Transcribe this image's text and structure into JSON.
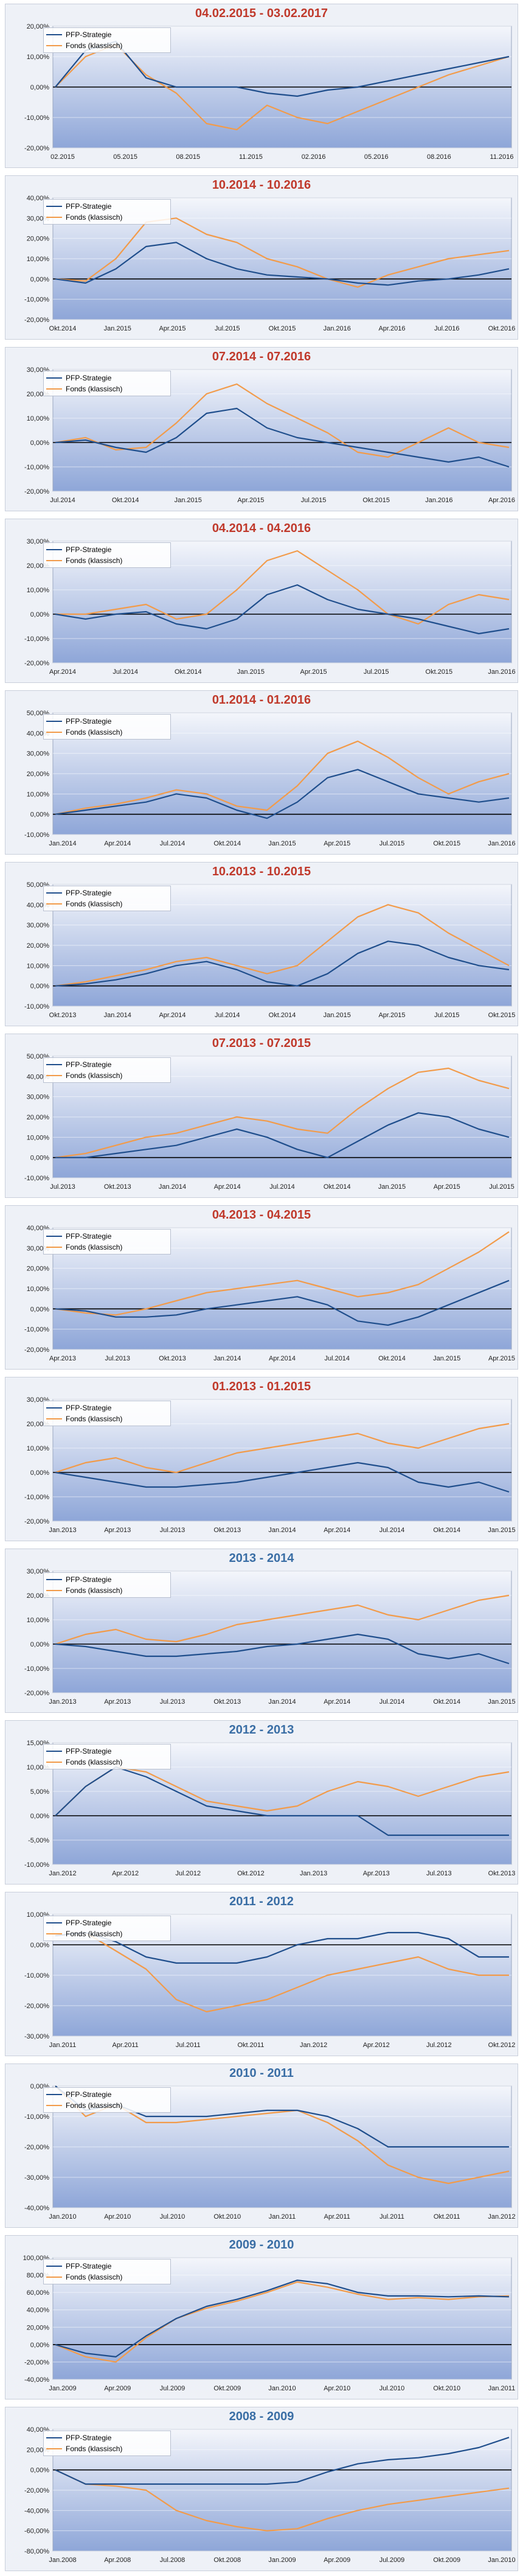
{
  "colors": {
    "strategy": "#1f4e8c",
    "fund": "#f29b4a",
    "title_red": "#c0392b",
    "title_blue": "#3a6ea5",
    "plot_top": "#f4f6fb",
    "plot_bottom": "#8ea6d8"
  },
  "chart_data": [
    {
      "type": "line",
      "title": "04.02.2015 - 03.02.2017",
      "title_color": "red",
      "yticks": [
        "20,00%",
        "10,00%",
        "0,00%",
        "-10,00%",
        "-20,00%"
      ],
      "ylim": [
        -20,
        20
      ],
      "xticks": [
        "02.2015",
        "05.2015",
        "08.2015",
        "11.2015",
        "02.2016",
        "05.2016",
        "08.2016",
        "11.2016"
      ],
      "series": [
        {
          "name": "PFP-Strategie",
          "values": [
            0,
            12,
            15,
            3,
            0,
            0,
            0,
            -2,
            -3,
            -1,
            0,
            2,
            4,
            6,
            8,
            10
          ]
        },
        {
          "name": "Fonds (klassisch)",
          "values": [
            0,
            10,
            14,
            4,
            -2,
            -12,
            -14,
            -6,
            -10,
            -12,
            -8,
            -4,
            0,
            4,
            7,
            10
          ]
        }
      ]
    },
    {
      "type": "line",
      "title": "10.2014 - 10.2016",
      "title_color": "red",
      "yticks": [
        "40,00%",
        "30,00%",
        "20,00%",
        "10,00%",
        "0,00%",
        "-10,00%",
        "-20,00%"
      ],
      "ylim": [
        -20,
        40
      ],
      "xticks": [
        "Okt.2014",
        "Jan.2015",
        "Apr.2015",
        "Jul.2015",
        "Okt.2015",
        "Jan.2016",
        "Apr.2016",
        "Jul.2016",
        "Okt.2016"
      ],
      "series": [
        {
          "name": "PFP-Strategie",
          "values": [
            0,
            -2,
            5,
            16,
            18,
            10,
            5,
            2,
            1,
            0,
            -2,
            -3,
            -1,
            0,
            2,
            5
          ]
        },
        {
          "name": "Fonds (klassisch)",
          "values": [
            0,
            -1,
            10,
            28,
            30,
            22,
            18,
            10,
            6,
            0,
            -4,
            2,
            6,
            10,
            12,
            14
          ]
        }
      ]
    },
    {
      "type": "line",
      "title": "07.2014 - 07.2016",
      "title_color": "red",
      "yticks": [
        "30,00%",
        "20,00%",
        "10,00%",
        "0,00%",
        "-10,00%",
        "-20,00%"
      ],
      "ylim": [
        -20,
        30
      ],
      "xticks": [
        "Jul.2014",
        "Okt.2014",
        "Jan.2015",
        "Apr.2015",
        "Jul.2015",
        "Okt.2015",
        "Jan.2016",
        "Apr.2016"
      ],
      "series": [
        {
          "name": "PFP-Strategie",
          "values": [
            0,
            1,
            -2,
            -4,
            2,
            12,
            14,
            6,
            2,
            0,
            -2,
            -4,
            -6,
            -8,
            -6,
            -10
          ]
        },
        {
          "name": "Fonds (klassisch)",
          "values": [
            0,
            2,
            -3,
            -2,
            8,
            20,
            24,
            16,
            10,
            4,
            -4,
            -6,
            0,
            6,
            0,
            -2
          ]
        }
      ]
    },
    {
      "type": "line",
      "title": "04.2014 - 04.2016",
      "title_color": "red",
      "yticks": [
        "30,00%",
        "20,00%",
        "10,00%",
        "0,00%",
        "-10,00%",
        "-20,00%"
      ],
      "ylim": [
        -20,
        30
      ],
      "xticks": [
        "Apr.2014",
        "Jul.2014",
        "Okt.2014",
        "Jan.2015",
        "Apr.2015",
        "Jul.2015",
        "Okt.2015",
        "Jan.2016"
      ],
      "series": [
        {
          "name": "PFP-Strategie",
          "values": [
            0,
            -2,
            0,
            1,
            -4,
            -6,
            -2,
            8,
            12,
            6,
            2,
            0,
            -2,
            -5,
            -8,
            -6
          ]
        },
        {
          "name": "Fonds (klassisch)",
          "values": [
            0,
            0,
            2,
            4,
            -2,
            0,
            10,
            22,
            26,
            18,
            10,
            0,
            -4,
            4,
            8,
            6
          ]
        }
      ]
    },
    {
      "type": "line",
      "title": "01.2014 - 01.2016",
      "title_color": "red",
      "yticks": [
        "50,00%",
        "40,00%",
        "30,00%",
        "20,00%",
        "10,00%",
        "0,00%",
        "-10,00%"
      ],
      "ylim": [
        -10,
        50
      ],
      "xticks": [
        "Jan.2014",
        "Apr.2014",
        "Jul.2014",
        "Okt.2014",
        "Jan.2015",
        "Apr.2015",
        "Jul.2015",
        "Okt.2015",
        "Jan.2016"
      ],
      "series": [
        {
          "name": "PFP-Strategie",
          "values": [
            0,
            2,
            4,
            6,
            10,
            8,
            2,
            -2,
            6,
            18,
            22,
            16,
            10,
            8,
            6,
            8
          ]
        },
        {
          "name": "Fonds (klassisch)",
          "values": [
            0,
            3,
            5,
            8,
            12,
            10,
            4,
            2,
            14,
            30,
            36,
            28,
            18,
            10,
            16,
            20
          ]
        }
      ]
    },
    {
      "type": "line",
      "title": "10.2013 - 10.2015",
      "title_color": "red",
      "yticks": [
        "50,00%",
        "40,00%",
        "30,00%",
        "20,00%",
        "10,00%",
        "0,00%",
        "-10,00%"
      ],
      "ylim": [
        -10,
        50
      ],
      "xticks": [
        "Okt.2013",
        "Jan.2014",
        "Apr.2014",
        "Jul.2014",
        "Okt.2014",
        "Jan.2015",
        "Apr.2015",
        "Jul.2015",
        "Okt.2015"
      ],
      "series": [
        {
          "name": "PFP-Strategie",
          "values": [
            0,
            1,
            3,
            6,
            10,
            12,
            8,
            2,
            0,
            6,
            16,
            22,
            20,
            14,
            10,
            8
          ]
        },
        {
          "name": "Fonds (klassisch)",
          "values": [
            0,
            2,
            5,
            8,
            12,
            14,
            10,
            6,
            10,
            22,
            34,
            40,
            36,
            26,
            18,
            10
          ]
        }
      ]
    },
    {
      "type": "line",
      "title": "07.2013 - 07.2015",
      "title_color": "red",
      "yticks": [
        "50,00%",
        "40,00%",
        "30,00%",
        "20,00%",
        "10,00%",
        "0,00%",
        "-10,00%"
      ],
      "ylim": [
        -10,
        50
      ],
      "xticks": [
        "Jul.2013",
        "Okt.2013",
        "Jan.2014",
        "Apr.2014",
        "Jul.2014",
        "Okt.2014",
        "Jan.2015",
        "Apr.2015",
        "Jul.2015"
      ],
      "series": [
        {
          "name": "PFP-Strategie",
          "values": [
            0,
            0,
            2,
            4,
            6,
            10,
            14,
            10,
            4,
            0,
            8,
            16,
            22,
            20,
            14,
            10
          ]
        },
        {
          "name": "Fonds (klassisch)",
          "values": [
            0,
            2,
            6,
            10,
            12,
            16,
            20,
            18,
            14,
            12,
            24,
            34,
            42,
            44,
            38,
            34
          ]
        }
      ]
    },
    {
      "type": "line",
      "title": "04.2013 - 04.2015",
      "title_color": "red",
      "yticks": [
        "40,00%",
        "30,00%",
        "20,00%",
        "10,00%",
        "0,00%",
        "-10,00%",
        "-20,00%"
      ],
      "ylim": [
        -20,
        40
      ],
      "xticks": [
        "Apr.2013",
        "Jul.2013",
        "Okt.2013",
        "Jan.2014",
        "Apr.2014",
        "Jul.2014",
        "Okt.2014",
        "Jan.2015",
        "Apr.2015"
      ],
      "series": [
        {
          "name": "PFP-Strategie",
          "values": [
            0,
            -1,
            -4,
            -4,
            -3,
            0,
            2,
            4,
            6,
            2,
            -6,
            -8,
            -4,
            2,
            8,
            14
          ]
        },
        {
          "name": "Fonds (klassisch)",
          "values": [
            0,
            -2,
            -3,
            0,
            4,
            8,
            10,
            12,
            14,
            10,
            6,
            8,
            12,
            20,
            28,
            38
          ]
        }
      ]
    },
    {
      "type": "line",
      "title": "01.2013 - 01.2015",
      "title_color": "red",
      "yticks": [
        "30,00%",
        "20,00%",
        "10,00%",
        "0,00%",
        "-10,00%",
        "-20,00%"
      ],
      "ylim": [
        -20,
        30
      ],
      "xticks": [
        "Jan.2013",
        "Apr.2013",
        "Jul.2013",
        "Okt.2013",
        "Jan.2014",
        "Apr.2014",
        "Jul.2014",
        "Okt.2014",
        "Jan.2015"
      ],
      "series": [
        {
          "name": "PFP-Strategie",
          "values": [
            0,
            -2,
            -4,
            -6,
            -6,
            -5,
            -4,
            -2,
            0,
            2,
            4,
            2,
            -4,
            -6,
            -4,
            -8
          ]
        },
        {
          "name": "Fonds (klassisch)",
          "values": [
            0,
            4,
            6,
            2,
            0,
            4,
            8,
            10,
            12,
            14,
            16,
            12,
            10,
            14,
            18,
            20
          ]
        }
      ]
    },
    {
      "type": "line",
      "title": "2013 - 2014",
      "title_color": "blue",
      "yticks": [
        "30,00%",
        "20,00%",
        "10,00%",
        "0,00%",
        "-10,00%",
        "-20,00%"
      ],
      "ylim": [
        -20,
        30
      ],
      "xticks": [
        "Jan.2013",
        "Apr.2013",
        "Jul.2013",
        "Okt.2013",
        "Jan.2014",
        "Apr.2014",
        "Jul.2014",
        "Okt.2014",
        "Jan.2015"
      ],
      "series": [
        {
          "name": "PFP-Strategie",
          "values": [
            0,
            -1,
            -3,
            -5,
            -5,
            -4,
            -3,
            -1,
            0,
            2,
            4,
            2,
            -4,
            -6,
            -4,
            -8
          ]
        },
        {
          "name": "Fonds (klassisch)",
          "values": [
            0,
            4,
            6,
            2,
            1,
            4,
            8,
            10,
            12,
            14,
            16,
            12,
            10,
            14,
            18,
            20
          ]
        }
      ]
    },
    {
      "type": "line",
      "title": "2012 - 2013",
      "title_color": "blue",
      "yticks": [
        "15,00%",
        "10,00%",
        "5,00%",
        "0,00%",
        "-5,00%",
        "-10,00%"
      ],
      "ylim": [
        -10,
        15
      ],
      "xticks": [
        "Jan.2012",
        "Apr.2012",
        "Jul.2012",
        "Okt.2012",
        "Jan.2013",
        "Apr.2013",
        "Jul.2013",
        "Okt.2013"
      ],
      "series": [
        {
          "name": "PFP-Strategie",
          "values": [
            0,
            6,
            10,
            8,
            5,
            2,
            1,
            0,
            0,
            0,
            0,
            -4,
            -4,
            -4,
            -4,
            -4
          ]
        },
        {
          "name": "Fonds (klassisch)",
          "values": [
            0,
            6,
            10,
            9,
            6,
            3,
            2,
            1,
            2,
            5,
            7,
            6,
            4,
            6,
            8,
            9
          ]
        }
      ]
    },
    {
      "type": "line",
      "title": "2011 - 2012",
      "title_color": "blue",
      "yticks": [
        "10,00%",
        "0,00%",
        "-10,00%",
        "-20,00%",
        "-30,00%"
      ],
      "ylim": [
        -30,
        10
      ],
      "xticks": [
        "Jan.2011",
        "Apr.2011",
        "Jul.2011",
        "Okt.2011",
        "Jan.2012",
        "Apr.2012",
        "Jul.2012",
        "Okt.2012"
      ],
      "series": [
        {
          "name": "PFP-Strategie",
          "values": [
            3,
            4,
            1,
            -4,
            -6,
            -6,
            -6,
            -4,
            0,
            2,
            2,
            4,
            4,
            2,
            -4,
            -4
          ]
        },
        {
          "name": "Fonds (klassisch)",
          "values": [
            3,
            4,
            -2,
            -8,
            -18,
            -22,
            -20,
            -18,
            -14,
            -10,
            -8,
            -6,
            -4,
            -8,
            -10,
            -10
          ]
        }
      ]
    },
    {
      "type": "line",
      "title": "2010 - 2011",
      "title_color": "blue",
      "yticks": [
        "0,00%",
        "-10,00%",
        "-20,00%",
        "-30,00%",
        "-40,00%"
      ],
      "ylim": [
        -40,
        0
      ],
      "xticks": [
        "Jan.2010",
        "Apr.2010",
        "Jul.2010",
        "Okt.2010",
        "Jan.2011",
        "Apr.2011",
        "Jul.2011",
        "Okt.2011",
        "Jan.2012"
      ],
      "series": [
        {
          "name": "PFP-Strategie",
          "values": [
            0,
            -8,
            -6,
            -10,
            -10,
            -10,
            -9,
            -8,
            -8,
            -10,
            -14,
            -20,
            -20,
            -20,
            -20,
            -20
          ]
        },
        {
          "name": "Fonds (klassisch)",
          "values": [
            0,
            -10,
            -6,
            -12,
            -12,
            -11,
            -10,
            -9,
            -8,
            -12,
            -18,
            -26,
            -30,
            -32,
            -30,
            -28
          ]
        }
      ]
    },
    {
      "type": "line",
      "title": "2009 - 2010",
      "title_color": "blue",
      "yticks": [
        "100,00%",
        "80,00%",
        "60,00%",
        "40,00%",
        "20,00%",
        "0,00%",
        "-20,00%",
        "-40,00%"
      ],
      "ylim": [
        -40,
        100
      ],
      "xticks": [
        "Jan.2009",
        "Apr.2009",
        "Jul.2009",
        "Okt.2009",
        "Jan.2010",
        "Apr.2010",
        "Jul.2010",
        "Okt.2010",
        "Jan.2011"
      ],
      "series": [
        {
          "name": "PFP-Strategie",
          "values": [
            0,
            -10,
            -14,
            10,
            30,
            44,
            52,
            62,
            74,
            70,
            60,
            56,
            56,
            55,
            56,
            55
          ]
        },
        {
          "name": "Fonds (klassisch)",
          "values": [
            0,
            -14,
            -20,
            8,
            30,
            42,
            50,
            60,
            72,
            66,
            58,
            52,
            54,
            52,
            55,
            56
          ]
        }
      ]
    },
    {
      "type": "line",
      "title": "2008 - 2009",
      "title_color": "blue",
      "yticks": [
        "40,00%",
        "20,00%",
        "0,00%",
        "-20,00%",
        "-40,00%",
        "-60,00%",
        "-80,00%"
      ],
      "ylim": [
        -80,
        40
      ],
      "xticks": [
        "Jan.2008",
        "Apr.2008",
        "Jul.2008",
        "Okt.2008",
        "Jan.2009",
        "Apr.2009",
        "Jul.2009",
        "Okt.2009",
        "Jan.2010"
      ],
      "series": [
        {
          "name": "PFP-Strategie",
          "values": [
            0,
            -14,
            -14,
            -14,
            -14,
            -14,
            -14,
            -14,
            -12,
            -2,
            6,
            10,
            12,
            16,
            22,
            32
          ]
        },
        {
          "name": "Fonds (klassisch)",
          "values": [
            0,
            -14,
            -16,
            -20,
            -40,
            -50,
            -56,
            -60,
            -58,
            -48,
            -40,
            -34,
            -30,
            -26,
            -22,
            -18
          ]
        }
      ]
    }
  ]
}
